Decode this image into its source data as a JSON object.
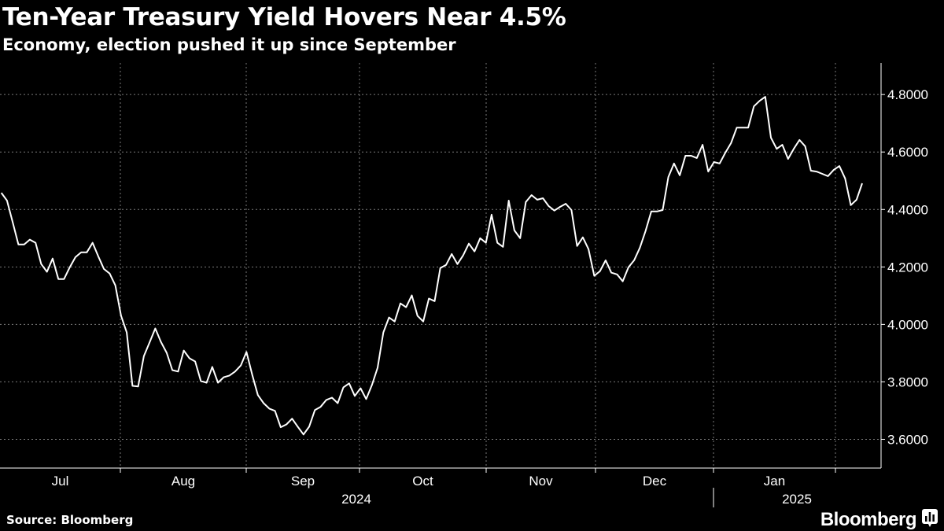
{
  "header": {
    "title": "Ten-Year Treasury Yield Hovers Near 4.5%",
    "subtitle": "Economy, election pushed it up since September"
  },
  "footer": {
    "source": "Source: Bloomberg",
    "logo": "Bloomberg",
    "logo_icon": "bloomberg-chart-icon"
  },
  "colors": {
    "background": "#000000",
    "line": "#ffffff",
    "grid": "#7a7a7a"
  },
  "chart_data": {
    "type": "line",
    "title": "Ten-Year Treasury Yield Hovers Near 4.5%",
    "subtitle": "Economy, election pushed it up since September",
    "xlabel": "",
    "ylabel": "",
    "y_axis_position": "right",
    "ylim": [
      3.5,
      4.91
    ],
    "yticks": [
      3.6,
      3.8,
      4.0,
      4.2,
      4.4,
      4.6,
      4.8
    ],
    "ytick_labels": [
      "3.6000",
      "3.8000",
      "4.0000",
      "4.2000",
      "4.4000",
      "4.6000",
      "4.8000"
    ],
    "month_labels": [
      "Jul",
      "Aug",
      "Sep",
      "Oct",
      "Nov",
      "Dec",
      "Jan"
    ],
    "year_labels": [
      "2024",
      "2025"
    ],
    "grid": true,
    "legend": "none",
    "series": [
      {
        "x": [
          "2024-07-02",
          "2024-07-03",
          "2024-07-05",
          "2024-07-08",
          "2024-07-09",
          "2024-07-10",
          "2024-07-11",
          "2024-07-12",
          "2024-07-15",
          "2024-07-16",
          "2024-07-17",
          "2024-07-18",
          "2024-07-19",
          "2024-07-22",
          "2024-07-23",
          "2024-07-24",
          "2024-07-25",
          "2024-07-26",
          "2024-07-29",
          "2024-07-30",
          "2024-07-31",
          "2024-08-01",
          "2024-08-02",
          "2024-08-05",
          "2024-08-06",
          "2024-08-07",
          "2024-08-08",
          "2024-08-09",
          "2024-08-12",
          "2024-08-13",
          "2024-08-14",
          "2024-08-15",
          "2024-08-16",
          "2024-08-19",
          "2024-08-20",
          "2024-08-21",
          "2024-08-22",
          "2024-08-23",
          "2024-08-26",
          "2024-08-27",
          "2024-08-28",
          "2024-08-29",
          "2024-08-30",
          "2024-09-03",
          "2024-09-04",
          "2024-09-05",
          "2024-09-06",
          "2024-09-09",
          "2024-09-10",
          "2024-09-11",
          "2024-09-12",
          "2024-09-13",
          "2024-09-16",
          "2024-09-17",
          "2024-09-18",
          "2024-09-19",
          "2024-09-20",
          "2024-09-23",
          "2024-09-24",
          "2024-09-25",
          "2024-09-26",
          "2024-09-27",
          "2024-09-30",
          "2024-10-01",
          "2024-10-02",
          "2024-10-03",
          "2024-10-04",
          "2024-10-07",
          "2024-10-08",
          "2024-10-09",
          "2024-10-10",
          "2024-10-11",
          "2024-10-15",
          "2024-10-16",
          "2024-10-17",
          "2024-10-18",
          "2024-10-21",
          "2024-10-22",
          "2024-10-23",
          "2024-10-24",
          "2024-10-25",
          "2024-10-28",
          "2024-10-29",
          "2024-10-30",
          "2024-10-31",
          "2024-11-01",
          "2024-11-04",
          "2024-11-05",
          "2024-11-06",
          "2024-11-07",
          "2024-11-08",
          "2024-11-12",
          "2024-11-13",
          "2024-11-14",
          "2024-11-15",
          "2024-11-18",
          "2024-11-19",
          "2024-11-20",
          "2024-11-21",
          "2024-11-22",
          "2024-11-25",
          "2024-11-26",
          "2024-11-27",
          "2024-11-29",
          "2024-12-02",
          "2024-12-03",
          "2024-12-04",
          "2024-12-05",
          "2024-12-06",
          "2024-12-09",
          "2024-12-10",
          "2024-12-11",
          "2024-12-12",
          "2024-12-13",
          "2024-12-16",
          "2024-12-17",
          "2024-12-18",
          "2024-12-19",
          "2024-12-20",
          "2024-12-23",
          "2024-12-24",
          "2024-12-26",
          "2024-12-27",
          "2024-12-30",
          "2024-12-31",
          "2025-01-02",
          "2025-01-03",
          "2025-01-06",
          "2025-01-07",
          "2025-01-08",
          "2025-01-09",
          "2025-01-10",
          "2025-01-13",
          "2025-01-14",
          "2025-01-15",
          "2025-01-16",
          "2025-01-17",
          "2025-01-21",
          "2025-01-22",
          "2025-01-23",
          "2025-01-24",
          "2025-01-27",
          "2025-01-28",
          "2025-01-29",
          "2025-01-30",
          "2025-01-31",
          "2025-02-03",
          "2025-02-04",
          "2025-02-05",
          "2025-02-06",
          "2025-02-07",
          "2025-02-10"
        ],
        "y": [
          4.458,
          4.431,
          4.355,
          4.278,
          4.278,
          4.295,
          4.284,
          4.21,
          4.183,
          4.229,
          4.158,
          4.158,
          4.199,
          4.234,
          4.251,
          4.251,
          4.284,
          4.237,
          4.193,
          4.177,
          4.136,
          4.03,
          3.972,
          3.786,
          3.784,
          3.89,
          3.937,
          3.986,
          3.939,
          3.901,
          3.841,
          3.836,
          3.909,
          3.882,
          3.871,
          3.803,
          3.797,
          3.852,
          3.797,
          3.816,
          3.822,
          3.836,
          3.857,
          3.904,
          3.825,
          3.754,
          3.726,
          3.707,
          3.699,
          3.642,
          3.652,
          3.672,
          3.644,
          3.617,
          3.644,
          3.702,
          3.713,
          3.737,
          3.745,
          3.726,
          3.781,
          3.795,
          3.751,
          3.778,
          3.74,
          3.789,
          3.849,
          3.972,
          4.024,
          4.01,
          4.073,
          4.06,
          4.101,
          4.03,
          4.01,
          4.09,
          4.081,
          4.196,
          4.207,
          4.245,
          4.21,
          4.24,
          4.281,
          4.254,
          4.3,
          4.284,
          4.382,
          4.284,
          4.27,
          4.431,
          4.327,
          4.3,
          4.426,
          4.45,
          4.434,
          4.439,
          4.412,
          4.396,
          4.409,
          4.42,
          4.398,
          4.273,
          4.303,
          4.262,
          4.169,
          4.185,
          4.223,
          4.18,
          4.174,
          4.15,
          4.199,
          4.223,
          4.267,
          4.325,
          4.393,
          4.393,
          4.398,
          4.513,
          4.56,
          4.519,
          4.587,
          4.587,
          4.579,
          4.625,
          4.532,
          4.565,
          4.56,
          4.598,
          4.631,
          4.685,
          4.685,
          4.685,
          4.759,
          4.778,
          4.792,
          4.65,
          4.611,
          4.625,
          4.576,
          4.611,
          4.642,
          4.62,
          4.535,
          4.532,
          4.524,
          4.516,
          4.538,
          4.551,
          4.508,
          4.415,
          4.434,
          4.491
        ]
      }
    ]
  }
}
